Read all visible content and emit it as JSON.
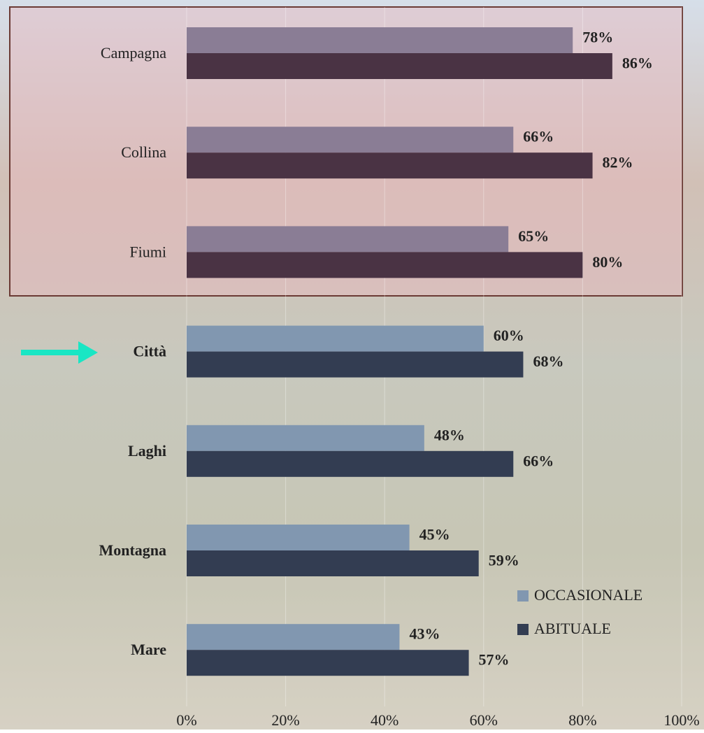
{
  "chart_data": {
    "type": "bar",
    "orientation": "horizontal",
    "categories": [
      "Campagna",
      "Collina",
      "Fiumi",
      "Città",
      "Laghi",
      "Montagna",
      "Mare"
    ],
    "series": [
      {
        "name": "OCCASIONALE",
        "color": "#8197b0",
        "colors": [
          "#8a7d95",
          "#8a7d95",
          "#8a7d95",
          "#8197b0",
          "#8197b0",
          "#8197b0",
          "#8197b0"
        ],
        "values": [
          78,
          66,
          65,
          60,
          48,
          45,
          43
        ],
        "value_labels": [
          "78%",
          "66%",
          "65%",
          "60%",
          "48%",
          "45%",
          "43%"
        ]
      },
      {
        "name": "ABITUALE",
        "color": "#333d52",
        "colors": [
          "#4a3344",
          "#4a3344",
          "#4a3344",
          "#333d52",
          "#333d52",
          "#333d52",
          "#333d52"
        ],
        "values": [
          86,
          82,
          80,
          68,
          66,
          59,
          57
        ],
        "value_labels": [
          "86%",
          "82%",
          "80%",
          "68%",
          "66%",
          "59%",
          "57%"
        ]
      }
    ],
    "xlim": [
      0,
      100
    ],
    "xticks": [
      {
        "value": 0,
        "label": "0%"
      },
      {
        "value": 20,
        "label": "20%"
      },
      {
        "value": 40,
        "label": "40%"
      },
      {
        "value": 60,
        "label": "60%"
      },
      {
        "value": 80,
        "label": "80%"
      },
      {
        "value": 100,
        "label": "100%"
      }
    ],
    "grid": true
  }
}
